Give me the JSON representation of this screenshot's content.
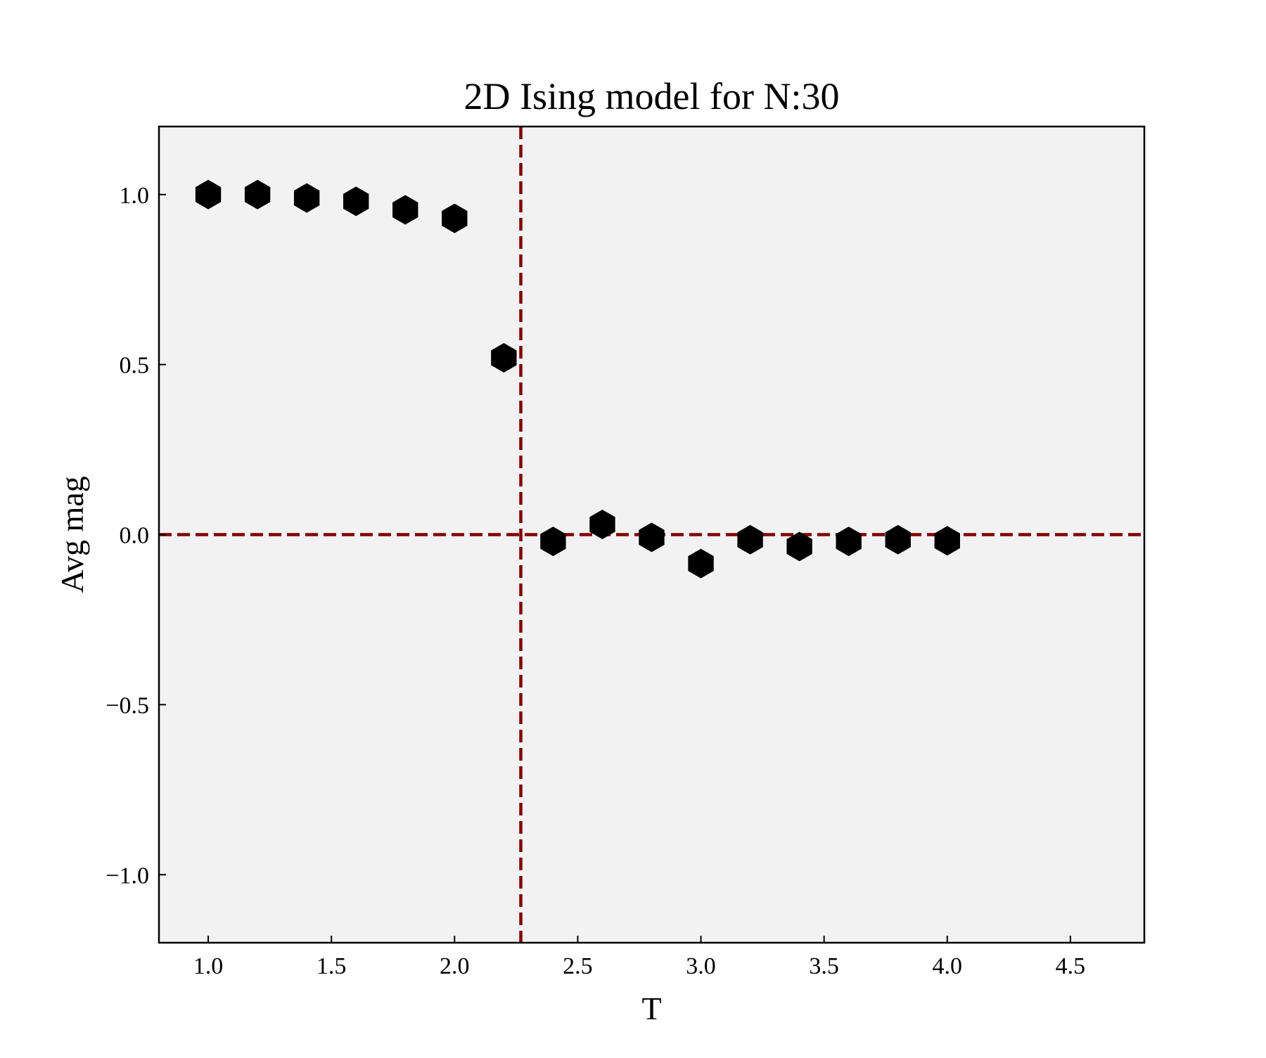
{
  "chart_data": {
    "type": "scatter",
    "title": "2D Ising model for N:30",
    "xlabel": "T",
    "ylabel": "Avg mag",
    "xlim": [
      0.8,
      4.8
    ],
    "ylim": [
      -1.2,
      1.2
    ],
    "xticks": [
      1.0,
      1.5,
      2.0,
      2.5,
      3.0,
      3.5,
      4.0,
      4.5
    ],
    "xtick_labels": [
      "1.0",
      "1.5",
      "2.0",
      "2.5",
      "3.0",
      "3.5",
      "4.0",
      "4.5"
    ],
    "yticks": [
      -1.0,
      -0.5,
      0.0,
      0.5,
      1.0
    ],
    "ytick_labels": [
      "−1.0",
      "−0.5",
      "0.0",
      "0.5",
      "1.0"
    ],
    "grid": false,
    "marker": "hexagon",
    "series": [
      {
        "x": [
          1.0,
          1.2,
          1.4,
          1.6,
          1.8,
          2.0,
          2.2,
          2.4,
          2.6,
          2.8,
          3.0,
          3.2,
          3.4,
          3.6,
          3.8,
          4.0
        ],
        "y": [
          1.0,
          1.0,
          0.99,
          0.98,
          0.955,
          0.93,
          0.52,
          -0.02,
          0.03,
          -0.008,
          -0.085,
          -0.015,
          -0.035,
          -0.02,
          -0.015,
          -0.018
        ],
        "color": "#000000"
      }
    ],
    "reference_lines": [
      {
        "orientation": "horizontal",
        "value": 0.0,
        "style": "dashed",
        "color": "#800000"
      },
      {
        "orientation": "vertical",
        "value": 2.269,
        "style": "dashed",
        "color": "#800000"
      }
    ],
    "plot_background": "#f2f2f2"
  }
}
